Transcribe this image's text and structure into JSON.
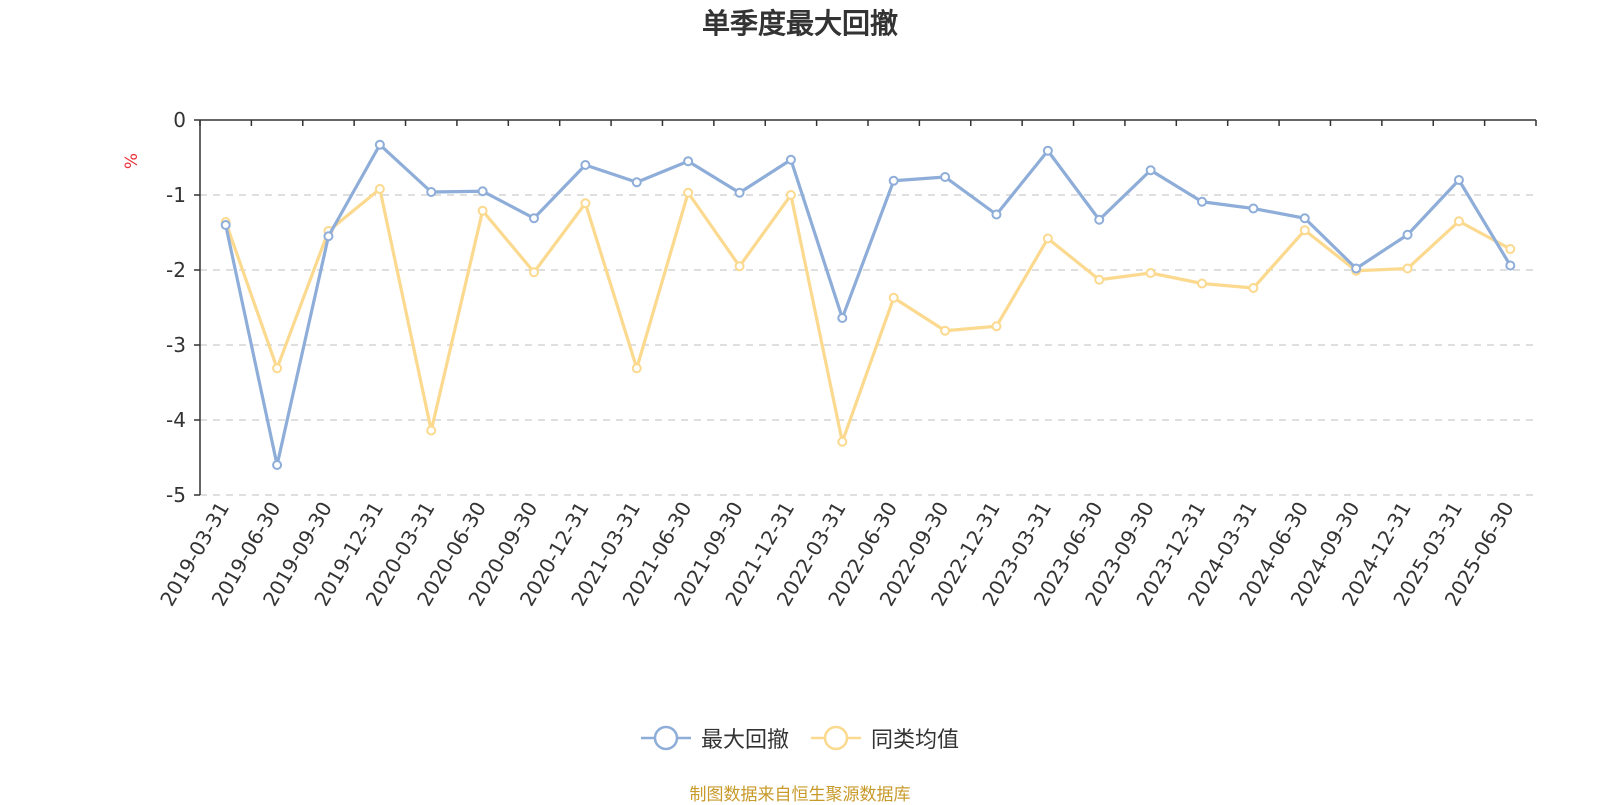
{
  "chart_data": {
    "type": "line",
    "title": "单季度最大回撤",
    "ylabel": "%",
    "xlabel": "",
    "ylim": [
      -5,
      0
    ],
    "yticks": [
      0,
      -1,
      -2,
      -3,
      -4,
      -5
    ],
    "grid": true,
    "legend_position": "bottom-center",
    "categories": [
      "2019-03-31",
      "2019-06-30",
      "2019-09-30",
      "2019-12-31",
      "2020-03-31",
      "2020-06-30",
      "2020-09-30",
      "2020-12-31",
      "2021-03-31",
      "2021-06-30",
      "2021-09-30",
      "2021-12-31",
      "2022-03-31",
      "2022-06-30",
      "2022-09-30",
      "2022-12-31",
      "2023-03-31",
      "2023-06-30",
      "2023-09-30",
      "2023-12-31",
      "2024-03-31",
      "2024-06-30",
      "2024-09-30",
      "2024-12-31",
      "2025-03-31",
      "2025-06-30"
    ],
    "series": [
      {
        "name": "最大回撤",
        "color": "#8eadd8",
        "values": [
          -1.4,
          -4.6,
          -1.55,
          -0.33,
          -0.96,
          -0.95,
          -1.31,
          -0.6,
          -0.83,
          -0.55,
          -0.97,
          -0.53,
          -2.64,
          -0.81,
          -0.76,
          -1.26,
          -0.41,
          -1.33,
          -0.67,
          -1.09,
          -1.18,
          -1.31,
          -1.98,
          -1.53,
          -0.8,
          -1.94
        ]
      },
      {
        "name": "同类均值",
        "color": "#fbd98f",
        "values": [
          -1.36,
          -3.31,
          -1.48,
          -0.92,
          -4.14,
          -1.21,
          -2.03,
          -1.11,
          -3.31,
          -0.97,
          -1.95,
          -1.0,
          -4.29,
          -2.37,
          -2.81,
          -2.75,
          -1.58,
          -2.13,
          -2.04,
          -2.18,
          -2.24,
          -1.47,
          -2.01,
          -1.98,
          -1.35,
          -1.72
        ]
      }
    ]
  },
  "footer": {
    "source": "制图数据来自恒生聚源数据库"
  }
}
